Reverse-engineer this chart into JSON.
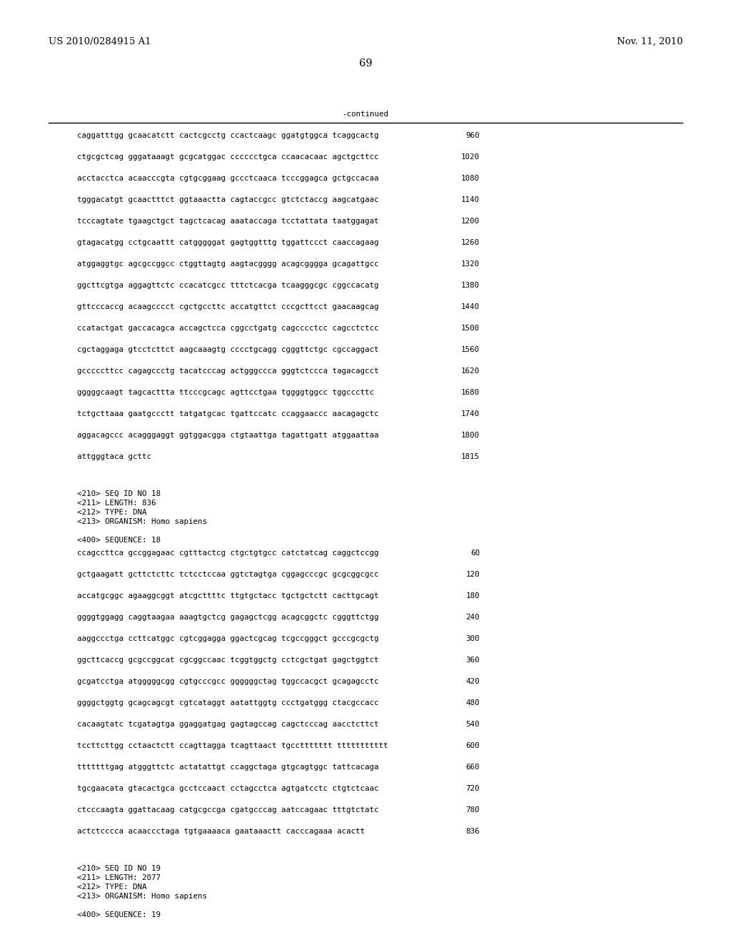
{
  "header_left": "US 2010/0284915 A1",
  "header_right": "Nov. 11, 2010",
  "page_number": "69",
  "continued_label": "-continued",
  "background_color": "#ffffff",
  "text_color": "#000000",
  "font_size_header": 9.5,
  "font_size_body": 7.8,
  "font_size_page": 10.5,
  "sequence_lines_top": [
    [
      "caggatttgg gcaacatctt cactcgcctg ccactcaagc ggatgtggca tcaggcactg",
      "960"
    ],
    [
      "ctgcgctcag gggataaagt gcgcatggac cccccctgca ccaacacaac agctgcttcc",
      "1020"
    ],
    [
      "acctacctca acaacccgta cgtgcggaag gccctcaaca tcccggagca gctgccacaa",
      "1080"
    ],
    [
      "tgggacatgt gcaactttct ggtaaactta cagtaccgcc gtctctaccg aagcatgaac",
      "1140"
    ],
    [
      "tcccagtate tgaagctgct tagctcacag aaataccaga tcctattata taatggagat",
      "1200"
    ],
    [
      "gtagacatgg cctgcaattt catgggggat gagtggtttg tggattccct caaccagaag",
      "1260"
    ],
    [
      "atggaggtgc agcgccggcc ctggttagtg aagtacgggg acagcgggga gcagattgcc",
      "1320"
    ],
    [
      "ggcttcgtga aggagttctc ccacatcgcc tttctcacga tcaagggcgc cggccacatg",
      "1380"
    ],
    [
      "gttcccaccg acaagcccct cgctgccttc accatgttct cccgcttcct gaacaagcag",
      "1440"
    ],
    [
      "ccatactgat gaccacagca accagctcca cggcctgatg cagcccctcc cagcctctcc",
      "1500"
    ],
    [
      "cgctaggaga gtcctcttct aagcaaagtg cccctgcagg cgggttctgc cgccaggact",
      "1560"
    ],
    [
      "gcccccttcc cagagccctg tacatcccag actgggccca gggtctccca tagacagcct",
      "1620"
    ],
    [
      "gggggcaagt tagcacttta ttcccgcagc agttcctgaa tggggtggcc tggcccttc",
      "1680"
    ],
    [
      "tctgcttaaa gaatgccctt tatgatgcac tgattccatc ccaggaaccc aacagagctc",
      "1740"
    ],
    [
      "aggacagccc acagggaggt ggtggacgga ctgtaattga tagattgatt atggaattaa",
      "1800"
    ],
    [
      "attgggtaca gcttc",
      "1815"
    ]
  ],
  "metadata_18": [
    "<210> SEQ ID NO 18",
    "<211> LENGTH: 836",
    "<212> TYPE: DNA",
    "<213> ORGANISM: Homo sapiens"
  ],
  "seq_label_18": "<400> SEQUENCE: 18",
  "sequence_lines_18": [
    [
      "ccagccttca gccggagaac cgtttactcg ctgctgtgcc catctatcag caggctccgg",
      "60"
    ],
    [
      "gctgaagatt gcttctcttc tctcctccaa ggtctagtga cggagcccgc gcgcggcgcc",
      "120"
    ],
    [
      "accatgcggc agaaggcggt atcgcttttc ttgtgctacc tgctgctctt cacttgcagt",
      "180"
    ],
    [
      "ggggtggagg caggtaagaa aaagtgctcg gagagctcgg acagcggctc cgggttctgg",
      "240"
    ],
    [
      "aaggccctga ccttcatggc cgtcggagga ggactcgcag tcgccgggct gcccgcgctg",
      "300"
    ],
    [
      "ggcttcaccg gcgccggcat cgcggccaac tcggtggctg cctcgctgat gagctggtct",
      "360"
    ],
    [
      "gcgatcctga atgggggcgg cgtgcccgcc ggggggctag tggccacgct gcagagcctc",
      "420"
    ],
    [
      "ggggctggtg gcagcagcgt cgtcataggt aatattggtg ccctgatggg ctacgccacc",
      "480"
    ],
    [
      "cacaagtatc tcgatagtga ggaggatgag gagtagccag cagctcccag aacctcttct",
      "540"
    ],
    [
      "tccttcttgg cctaactctt ccagttagga tcagttaact tgccttttttt ttttttttttt",
      "600"
    ],
    [
      "tttttttgag atgggttctc actatattgt ccaggctaga gtgcagtggc tattcacaga",
      "660"
    ],
    [
      "tgcgaacata gtacactgca gcctccaact cctagcctca agtgatcctc ctgtctcaac",
      "720"
    ],
    [
      "ctcccaagta ggattacaag catgcgccga cgatgcccag aatccagaac tttgtctatc",
      "780"
    ],
    [
      "actctcccca acaaccctaga tgtgaaaaca gaataaactt cacccagaaa acactt",
      "836"
    ]
  ],
  "metadata_19": [
    "<210> SEQ ID NO 19",
    "<211> LENGTH: 2077",
    "<212> TYPE: DNA",
    "<213> ORGANISM: Homo sapiens"
  ],
  "seq_label_19": "<400> SEQUENCE: 19"
}
